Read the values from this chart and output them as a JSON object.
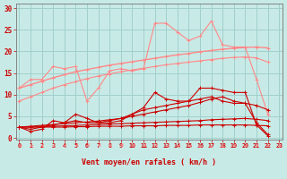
{
  "x": [
    0,
    1,
    2,
    3,
    4,
    5,
    6,
    7,
    8,
    9,
    10,
    11,
    12,
    13,
    14,
    15,
    16,
    17,
    18,
    19,
    20,
    21,
    22,
    23
  ],
  "background_color": "#c8eae6",
  "grid_color": "#a0d0cc",
  "line_color_dark": "#cc0000",
  "line_color_light": "#ff8888",
  "xlabel": "Vent moyen/en rafales ( km/h )",
  "ylabel_ticks": [
    0,
    5,
    10,
    15,
    20,
    25,
    30
  ],
  "xlim": [
    0,
    23
  ],
  "ylim": [
    0,
    31
  ],
  "series": {
    "light_jagged": [
      11.5,
      13.5,
      13.5,
      16.5,
      16.0,
      16.5,
      8.5,
      11.5,
      15.5,
      16.0,
      15.5,
      16.0,
      26.5,
      26.5,
      24.5,
      22.5,
      23.5,
      27.0,
      21.5,
      21.0,
      21.0,
      13.5,
      5.5,
      null
    ],
    "light_trend_high": [
      11.5,
      12.3,
      13.1,
      13.9,
      14.6,
      15.3,
      15.8,
      16.3,
      16.8,
      17.2,
      17.6,
      18.0,
      18.4,
      18.8,
      19.2,
      19.5,
      19.9,
      20.2,
      20.5,
      20.7,
      20.9,
      21.0,
      20.8,
      null
    ],
    "light_trend_low": [
      8.5,
      9.5,
      10.5,
      11.5,
      12.3,
      13.0,
      13.7,
      14.3,
      14.8,
      15.3,
      15.7,
      16.1,
      16.5,
      16.9,
      17.2,
      17.5,
      17.8,
      18.1,
      18.4,
      18.6,
      18.7,
      18.5,
      17.5,
      null
    ],
    "dark_jagged": [
      2.5,
      1.5,
      2.0,
      4.0,
      3.5,
      5.5,
      4.5,
      3.5,
      3.5,
      4.0,
      5.5,
      7.0,
      10.5,
      9.0,
      8.5,
      8.5,
      11.5,
      11.5,
      11.0,
      10.5,
      10.5,
      3.0,
      0.5,
      null
    ],
    "dark_mid": [
      2.5,
      2.0,
      2.5,
      3.0,
      3.5,
      4.0,
      3.5,
      3.5,
      4.0,
      4.5,
      5.5,
      6.5,
      7.0,
      7.5,
      8.0,
      8.5,
      9.0,
      9.5,
      8.5,
      8.0,
      8.0,
      3.5,
      0.8,
      null
    ],
    "dark_trend": [
      2.5,
      2.7,
      2.9,
      3.1,
      3.3,
      3.5,
      3.7,
      3.9,
      4.2,
      4.5,
      5.0,
      5.5,
      6.0,
      6.5,
      7.0,
      7.5,
      8.2,
      9.0,
      9.5,
      8.5,
      8.0,
      7.5,
      6.5,
      null
    ],
    "dark_low": [
      2.5,
      2.5,
      2.6,
      2.7,
      2.8,
      2.9,
      3.0,
      3.1,
      3.2,
      3.3,
      3.4,
      3.5,
      3.6,
      3.7,
      3.8,
      3.9,
      4.0,
      4.2,
      4.3,
      4.4,
      4.5,
      4.3,
      4.0,
      null
    ],
    "dark_flat": [
      2.5,
      2.5,
      2.5,
      2.5,
      2.5,
      2.6,
      2.6,
      2.7,
      2.7,
      2.7,
      2.8,
      2.8,
      2.8,
      2.9,
      2.9,
      2.9,
      3.0,
      3.0,
      3.0,
      3.0,
      3.0,
      2.9,
      2.8,
      null
    ]
  },
  "wind_arrows": {
    "angles_deg": [
      225,
      225,
      270,
      270,
      270,
      315,
      315,
      315,
      270,
      315,
      315,
      315,
      315,
      225,
      225,
      225,
      180,
      180,
      180,
      270,
      270,
      270,
      270,
      270
    ]
  }
}
